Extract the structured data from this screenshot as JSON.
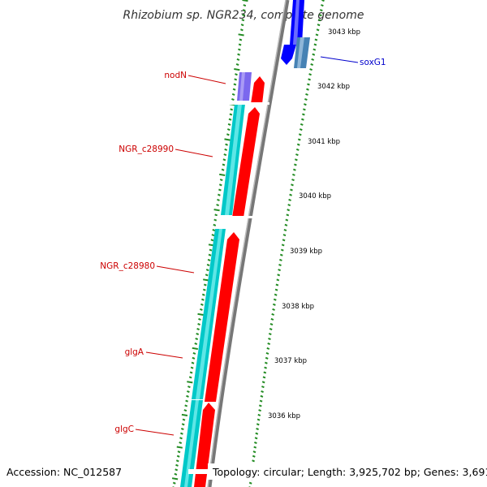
{
  "title": "Rhizobium sp. NGR234, complete genome",
  "footer": {
    "accession": "Accession: NC_012587",
    "summary": "Topology: circular; Length: 3,925,702 bp; Genes: 3,691"
  },
  "ticks": [
    {
      "label": "3043 kbp"
    },
    {
      "label": "3042 kbp"
    },
    {
      "label": "3041 kbp"
    },
    {
      "label": "3040 kbp"
    },
    {
      "label": "3039 kbp"
    },
    {
      "label": "3038 kbp"
    },
    {
      "label": "3037 kbp"
    },
    {
      "label": "3036 kbp"
    }
  ],
  "gene_labels": [
    {
      "text": "nodN",
      "color": "#cc0000"
    },
    {
      "text": "NGR_c28990",
      "color": "#cc0000"
    },
    {
      "text": "NGR_c28980",
      "color": "#cc0000"
    },
    {
      "text": "glgA",
      "color": "#cc0000"
    },
    {
      "text": "glgC",
      "color": "#cc0000"
    },
    {
      "text": "soxG1",
      "color": "#0000cc"
    }
  ],
  "colors": {
    "cds_forward": "#ff0000",
    "cds_reverse_teal": "#00c8c8",
    "blue_gene": "#0000ff",
    "steelblue_gene": "#4682b4",
    "purple_gene": "#7b68ee",
    "backbone": "#8c8c8c",
    "gc_dots": "#228b22"
  }
}
